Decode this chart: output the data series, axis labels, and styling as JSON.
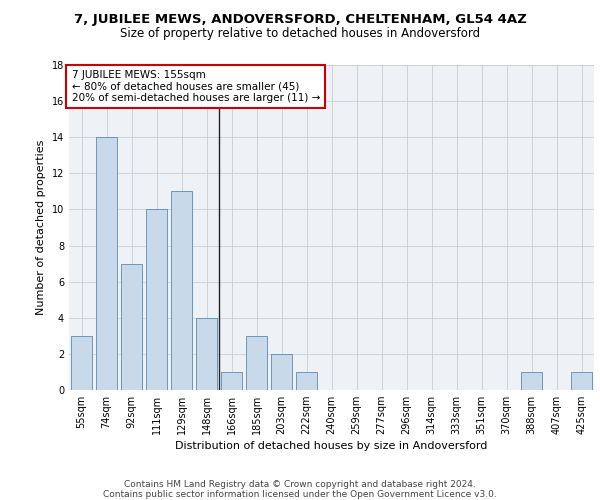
{
  "title1": "7, JUBILEE MEWS, ANDOVERSFORD, CHELTENHAM, GL54 4AZ",
  "title2": "Size of property relative to detached houses in Andoversford",
  "xlabel": "Distribution of detached houses by size in Andoversford",
  "ylabel": "Number of detached properties",
  "categories": [
    "55sqm",
    "74sqm",
    "92sqm",
    "111sqm",
    "129sqm",
    "148sqm",
    "166sqm",
    "185sqm",
    "203sqm",
    "222sqm",
    "240sqm",
    "259sqm",
    "277sqm",
    "296sqm",
    "314sqm",
    "333sqm",
    "351sqm",
    "370sqm",
    "388sqm",
    "407sqm",
    "425sqm"
  ],
  "values": [
    3,
    14,
    7,
    10,
    11,
    4,
    1,
    3,
    2,
    1,
    0,
    0,
    0,
    0,
    0,
    0,
    0,
    0,
    1,
    0,
    1
  ],
  "bar_color": "#c8d9ea",
  "bar_edge_color": "#5a8ab5",
  "highlight_bar_index": 5,
  "annotation_text": "7 JUBILEE MEWS: 155sqm\n← 80% of detached houses are smaller (45)\n20% of semi-detached houses are larger (11) →",
  "annotation_box_color": "#ffffff",
  "annotation_box_edge": "#cc0000",
  "ylim": [
    0,
    18
  ],
  "yticks": [
    0,
    2,
    4,
    6,
    8,
    10,
    12,
    14,
    16,
    18
  ],
  "grid_color": "#cccccc",
  "bg_color": "#eef2f7",
  "footer1": "Contains HM Land Registry data © Crown copyright and database right 2024.",
  "footer2": "Contains public sector information licensed under the Open Government Licence v3.0.",
  "title1_fontsize": 9.5,
  "title2_fontsize": 8.5,
  "xlabel_fontsize": 8,
  "ylabel_fontsize": 8,
  "tick_fontsize": 7,
  "footer_fontsize": 6.5,
  "annotation_fontsize": 7.5
}
